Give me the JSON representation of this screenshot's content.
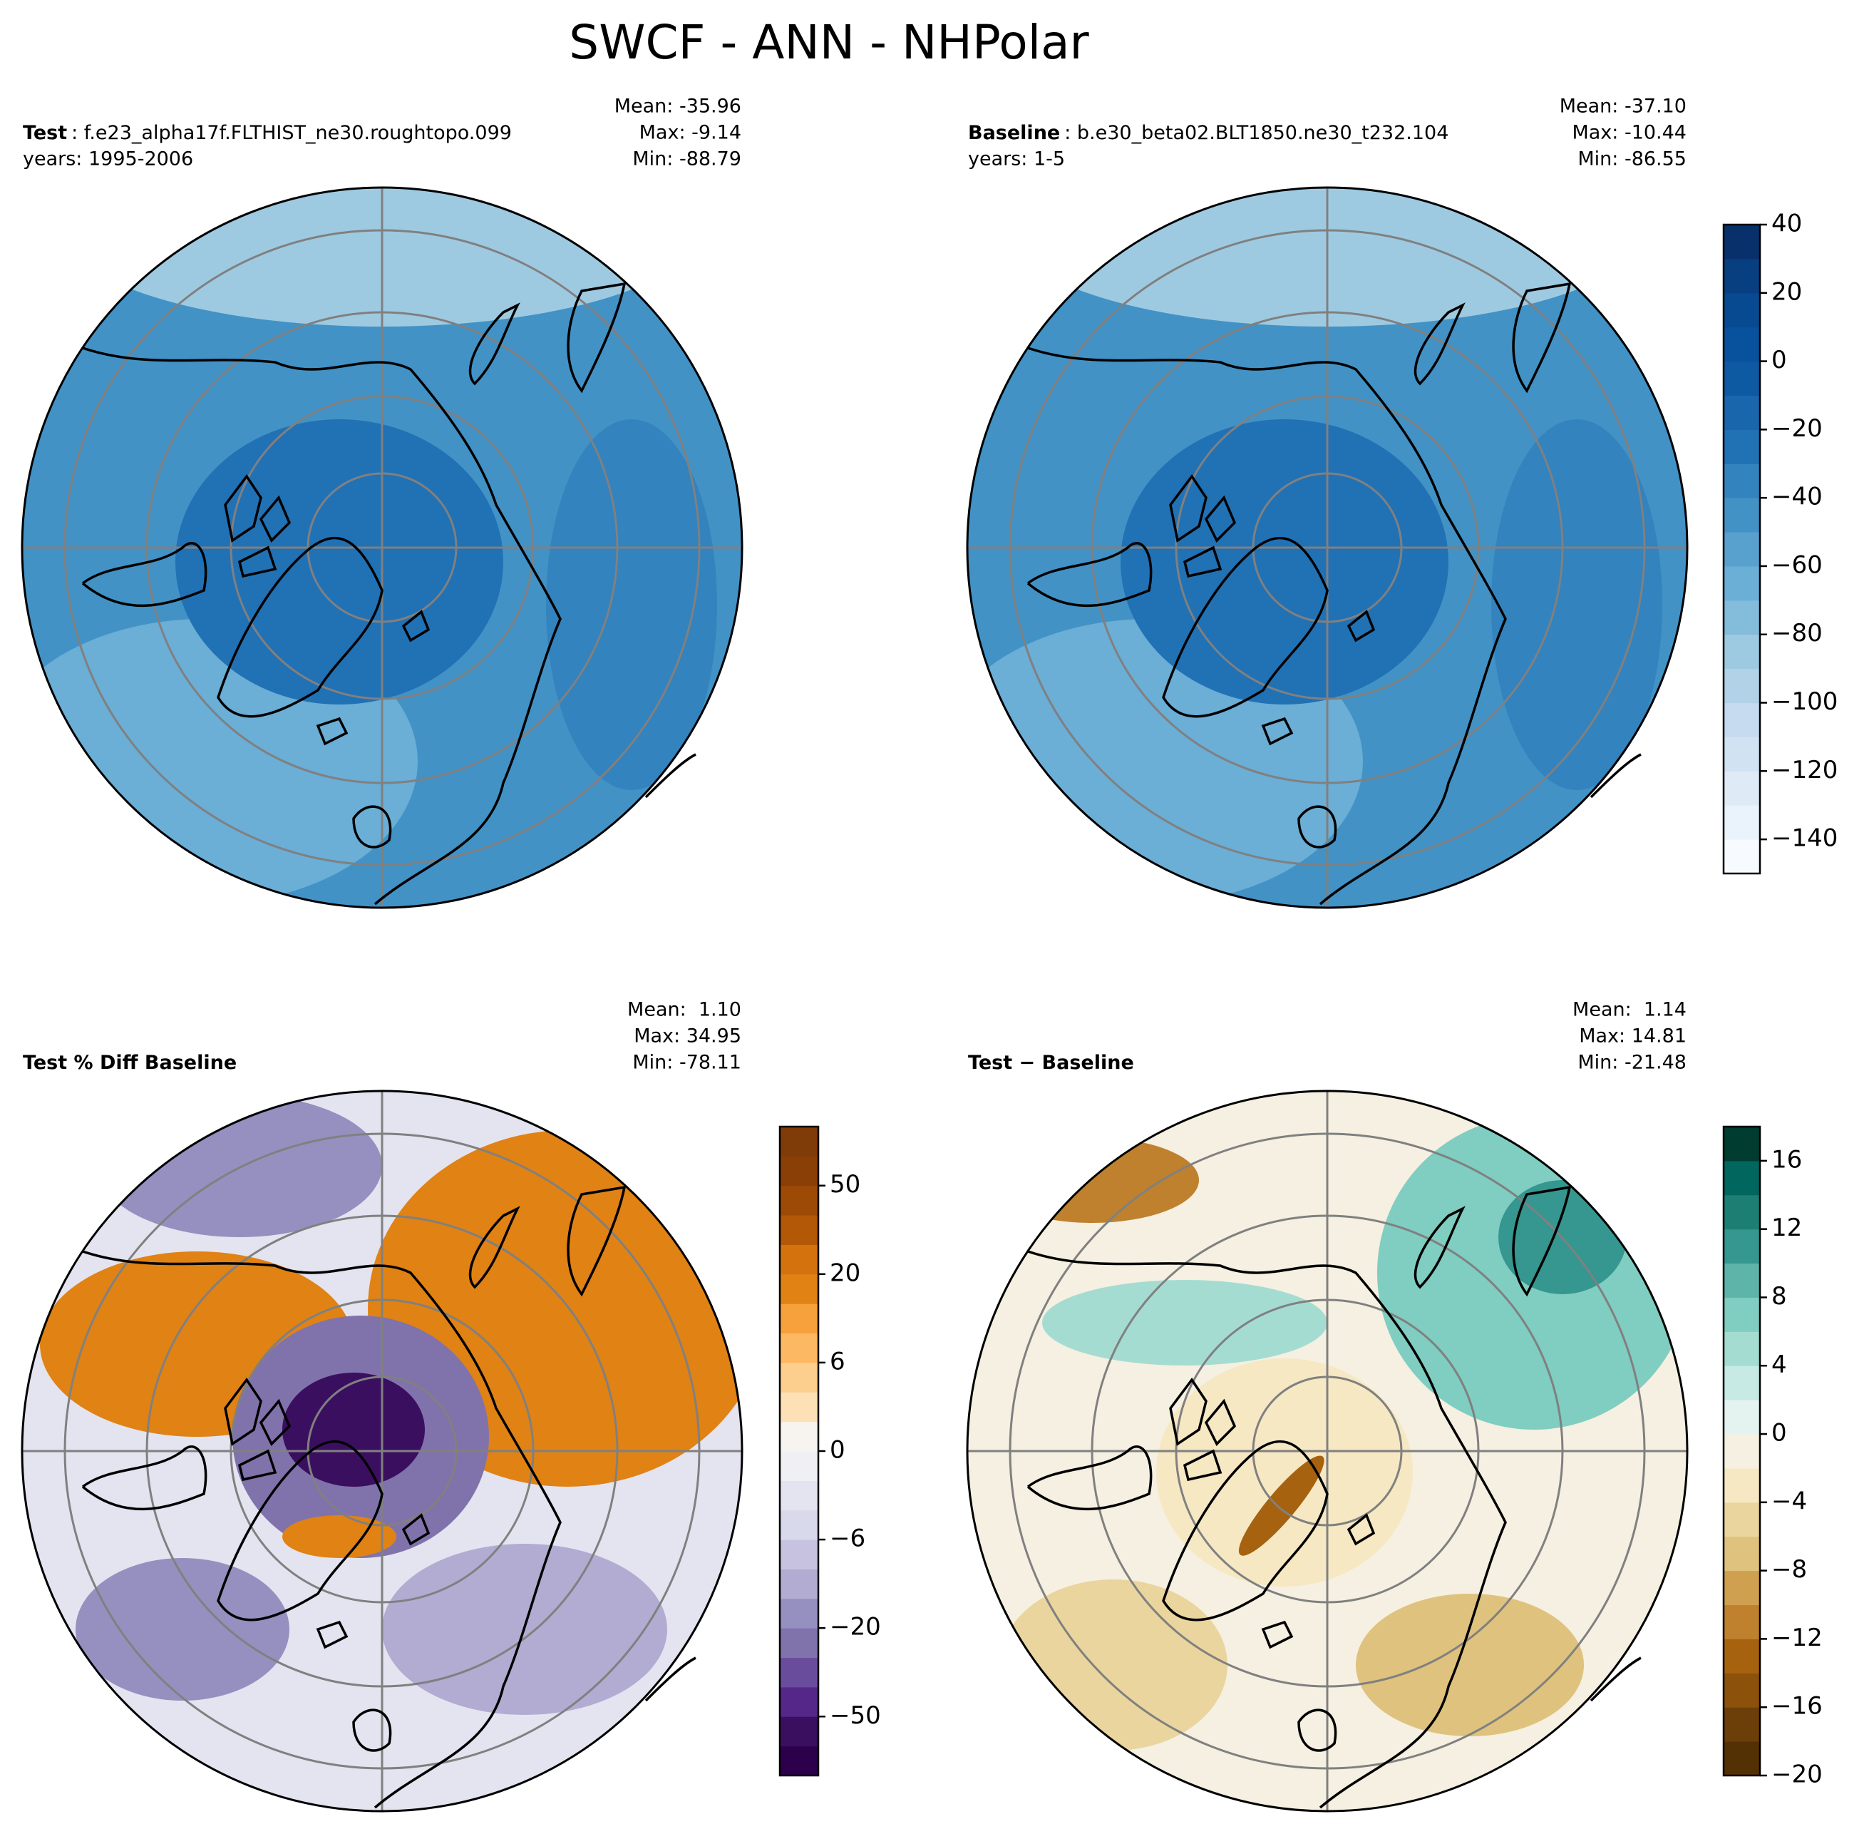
{
  "title": "SWCF - ANN - NHPolar",
  "panels": [
    {
      "label": "Test",
      "name": ": f.e23_alpha17f.FLTHIST_ne30.roughtopo.099",
      "years": "years: 1995-2006",
      "stats": [
        "Mean: -35.96",
        "Max: -9.14",
        "Min: -88.79"
      ]
    },
    {
      "label": "Baseline",
      "name": ": b.e30_beta02.BLT1850.ne30_t232.104",
      "years": "years: 1-5",
      "stats": [
        "Mean: -37.10",
        "Max: -10.44",
        "Min: -86.55"
      ]
    },
    {
      "label": "Test % Diff Baseline",
      "stats": [
        "Mean:  1.10",
        "Max: 34.95",
        "Min: -78.11"
      ]
    },
    {
      "label": "Test − Baseline",
      "stats": [
        "Mean:  1.14",
        "Max: 14.81",
        "Min: -21.48"
      ]
    }
  ],
  "colorbars": [
    {
      "levels": [
        -150,
        -140,
        -130,
        -120,
        -110,
        -100,
        -90,
        -80,
        -70,
        -60,
        -50,
        -40,
        -30,
        -20,
        -10,
        0,
        10,
        20,
        30,
        40
      ],
      "colors": [
        "#f7fbff",
        "#eaf3fb",
        "#deebf7",
        "#d1e3f3",
        "#c6dbef",
        "#b2d2e8",
        "#9ecae1",
        "#84bcdb",
        "#6baed6",
        "#58a1cf",
        "#4292c6",
        "#3383be",
        "#2171b5",
        "#1966ad",
        "#0d5aa3",
        "#08519c",
        "#084a91",
        "#083f80",
        "#08306b"
      ],
      "ticks": [
        40,
        20,
        0,
        {
          "value": -20,
          "label": "−20"
        },
        {
          "value": -40,
          "label": "−40"
        },
        {
          "value": -60,
          "label": "−60"
        },
        {
          "value": -80,
          "label": "−80"
        },
        {
          "value": -100,
          "label": "−100"
        },
        {
          "value": -120,
          "label": "−120"
        },
        {
          "value": -140,
          "label": "−140"
        }
      ]
    },
    {
      "levels": [
        -70,
        -60,
        -50,
        -40,
        -30,
        -20,
        -15,
        -10,
        -6,
        -4,
        -2,
        0,
        2,
        4,
        6,
        10,
        15,
        20,
        30,
        40,
        50,
        60,
        70
      ],
      "colors": [
        "#2d004b",
        "#3b0f5f",
        "#542788",
        "#6a4c9c",
        "#8073ac",
        "#9590bf",
        "#b2abd2",
        "#c7c2e0",
        "#d8daeb",
        "#e4e4f0",
        "#f0f0f4",
        "#f7f4ef",
        "#fee0b6",
        "#fdcf8e",
        "#fdb863",
        "#f6a13c",
        "#e08214",
        "#d4730e",
        "#b35806",
        "#9c4a06",
        "#8a3f06",
        "#7f3b08"
      ],
      "ticks": [
        50,
        20,
        6,
        0,
        {
          "value": -6,
          "label": "−6"
        },
        {
          "value": -20,
          "label": "−20"
        },
        {
          "value": -50,
          "label": "−50"
        }
      ]
    },
    {
      "levels": [
        -20,
        -18,
        -16,
        -14,
        -12,
        -10,
        -8,
        -6,
        -4,
        -2,
        0,
        2,
        4,
        6,
        8,
        10,
        12,
        14,
        16,
        18
      ],
      "colors": [
        "#543005",
        "#6b3f07",
        "#8c510a",
        "#a6620f",
        "#bf812d",
        "#cfa050",
        "#dfc27d",
        "#ead59e",
        "#f6e8c3",
        "#f5f0e1",
        "#e5f3f0",
        "#c7eae5",
        "#a5dcd2",
        "#80cdc1",
        "#5fb4a9",
        "#35978f",
        "#1d7f74",
        "#01665e",
        "#003c30"
      ],
      "ticks": [
        16,
        12,
        8,
        4,
        0,
        {
          "value": -4,
          "label": "−4"
        },
        {
          "value": -8,
          "label": "−8"
        },
        {
          "value": -12,
          "label": "−12"
        },
        {
          "value": -16,
          "label": "−16"
        },
        {
          "value": -20,
          "label": "−20"
        }
      ]
    }
  ]
}
